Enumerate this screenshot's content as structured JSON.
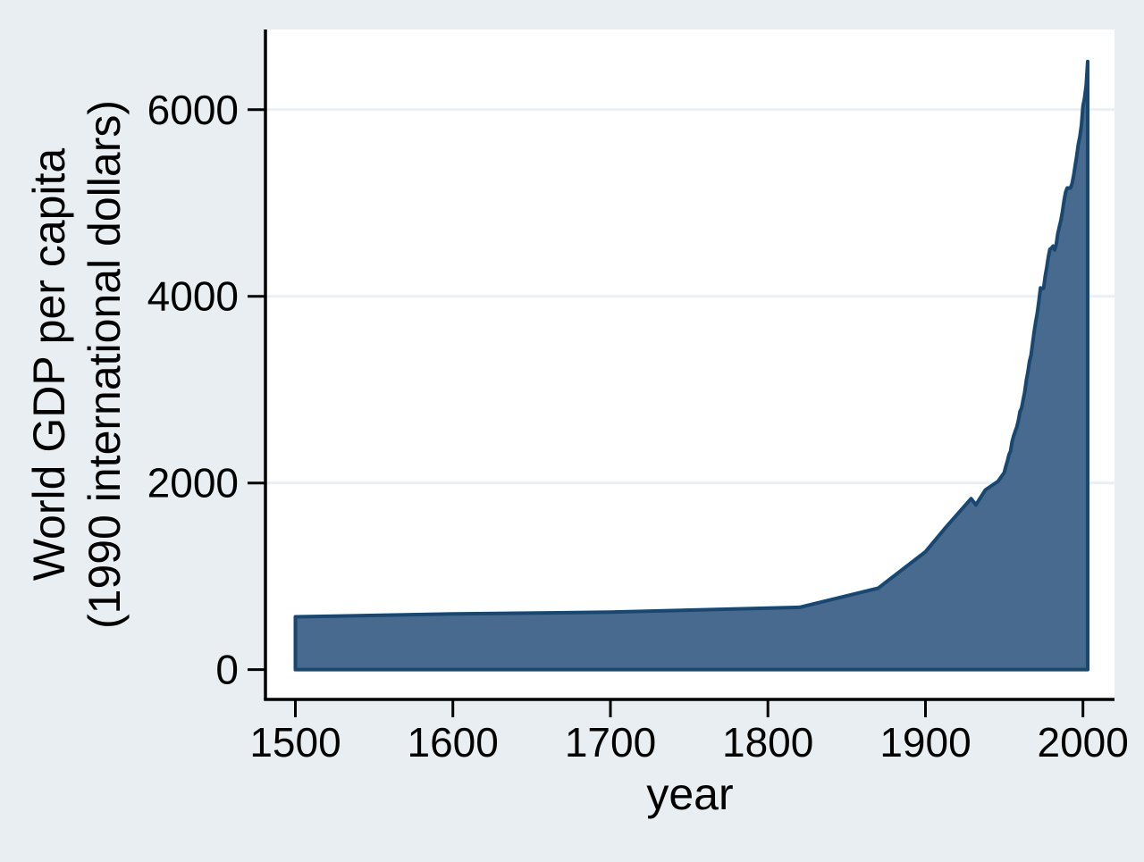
{
  "chart_data": {
    "type": "area",
    "title": "",
    "xlabel": "year",
    "ylabel_lines": [
      "World GDP per capita",
      "(1990 international dollars)"
    ],
    "x_ticks": [
      1500,
      1600,
      1700,
      1800,
      1900,
      2000
    ],
    "x_tick_labels": [
      "1500",
      "1600",
      "1700",
      "1800",
      "1900",
      "2000"
    ],
    "y_ticks": [
      0,
      2000,
      4000,
      6000
    ],
    "y_tick_labels": [
      "0",
      "2000",
      "4000",
      "6000"
    ],
    "y_gridline_values": [
      2000,
      4000,
      6000
    ],
    "xlim": [
      1481,
      2020
    ],
    "ylim": [
      -320,
      6860
    ],
    "grid": "horizontal-only",
    "legend": "none",
    "series": [
      {
        "name": "World GDP per capita (1990 international dollars)",
        "points": [
          [
            1500,
            566
          ],
          [
            1600,
            596
          ],
          [
            1700,
            615
          ],
          [
            1820,
            667
          ],
          [
            1870,
            873
          ],
          [
            1900,
            1262
          ],
          [
            1913,
            1526
          ],
          [
            1920,
            1660
          ],
          [
            1929,
            1832
          ],
          [
            1932,
            1765
          ],
          [
            1938,
            1925
          ],
          [
            1946,
            2017
          ],
          [
            1950,
            2111
          ],
          [
            1951,
            2178
          ],
          [
            1952,
            2231
          ],
          [
            1953,
            2302
          ],
          [
            1954,
            2341
          ],
          [
            1955,
            2443
          ],
          [
            1956,
            2505
          ],
          [
            1957,
            2556
          ],
          [
            1958,
            2601
          ],
          [
            1959,
            2671
          ],
          [
            1960,
            2764
          ],
          [
            1961,
            2801
          ],
          [
            1962,
            2891
          ],
          [
            1963,
            2972
          ],
          [
            1964,
            3098
          ],
          [
            1965,
            3189
          ],
          [
            1966,
            3300
          ],
          [
            1967,
            3370
          ],
          [
            1968,
            3491
          ],
          [
            1969,
            3621
          ],
          [
            1970,
            3730
          ],
          [
            1971,
            3820
          ],
          [
            1972,
            3950
          ],
          [
            1973,
            4091
          ],
          [
            1974,
            4082
          ],
          [
            1975,
            4088
          ],
          [
            1976,
            4212
          ],
          [
            1977,
            4311
          ],
          [
            1978,
            4424
          ],
          [
            1979,
            4505
          ],
          [
            1980,
            4517
          ],
          [
            1981,
            4538
          ],
          [
            1982,
            4497
          ],
          [
            1983,
            4556
          ],
          [
            1984,
            4669
          ],
          [
            1985,
            4745
          ],
          [
            1986,
            4817
          ],
          [
            1987,
            4911
          ],
          [
            1988,
            5029
          ],
          [
            1989,
            5121
          ],
          [
            1990,
            5162
          ],
          [
            1991,
            5160
          ],
          [
            1992,
            5160
          ],
          [
            1993,
            5204
          ],
          [
            1994,
            5290
          ],
          [
            1995,
            5394
          ],
          [
            1996,
            5503
          ],
          [
            1997,
            5629
          ],
          [
            1998,
            5709
          ],
          [
            1999,
            5833
          ],
          [
            2000,
            6038
          ],
          [
            2001,
            6126
          ],
          [
            2002,
            6262
          ],
          [
            2003,
            6516
          ]
        ]
      }
    ],
    "colors": {
      "page_background": "#e8eef1",
      "plot_background": "#ffffff",
      "gridline": "#e8f0f3",
      "area_fill": "#476a8e",
      "area_stroke": "#1a476f",
      "axis": "#000000",
      "text": "#000000"
    }
  }
}
